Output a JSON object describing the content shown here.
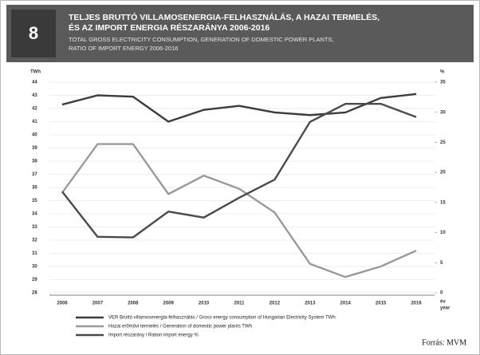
{
  "chart_data": {
    "type": "line",
    "chart_number": "8",
    "title_lines": [
      "TELJES BRUTTÓ VILLAMOSENERGIA-FELHASZNÁLÁS, A HAZAI TERMELÉS,",
      "ÉS  AZ IMPORT ENERGIA RÉSZARÁNYA 2006-2016"
    ],
    "subtitle_lines": [
      "TOTAL GROSS ELECTRICITY CONSUMPTION, GENERATION OF DOMESTIC POWER PLANTS,",
      "RATIO OF IMPORT ENERGY 2006-2016"
    ],
    "y_label": "TWh",
    "y2_label": "%",
    "x_label_lines": [
      "év",
      "year"
    ],
    "categories": [
      "2006",
      "2007",
      "2008",
      "2009",
      "2010",
      "2011",
      "2012",
      "2013",
      "2014",
      "2015",
      "2016"
    ],
    "series": [
      {
        "name": "VER Bruttó villamosenergia-felhasználás / Gross energy consumption of Hungarian Electricity System TWh",
        "color": "#3c3c3c",
        "values": [
          42.3,
          43.0,
          42.9,
          41.0,
          41.9,
          42.2,
          41.7,
          41.5,
          41.7,
          42.8,
          43.1
        ]
      },
      {
        "name": "Hazai erőművi termelés / Generation of domestic power plants TWh",
        "color": "#9a9a9a",
        "values": [
          35.6,
          39.3,
          39.3,
          35.5,
          36.9,
          35.9,
          34.1,
          30.2,
          29.2,
          30.0,
          31.2
        ]
      },
      {
        "name": "Import részarány / Ration import energy %",
        "color": "#4a4a4a",
        "axis": "y2",
        "values": [
          16.8,
          9.3,
          9.2,
          13.5,
          12.5,
          15.8,
          18.8,
          28.4,
          31.4,
          31.4,
          29.2
        ]
      }
    ],
    "ylim": [
      28,
      44
    ],
    "yticks": [
      28,
      29,
      30,
      31,
      32,
      33,
      34,
      35,
      36,
      37,
      38,
      39,
      40,
      41,
      42,
      43,
      44
    ],
    "y2lim": [
      0,
      35
    ],
    "y2ticks": [
      0,
      5,
      10,
      15,
      20,
      25,
      30,
      35
    ],
    "grid": true,
    "source": "Forrás: MVM"
  }
}
